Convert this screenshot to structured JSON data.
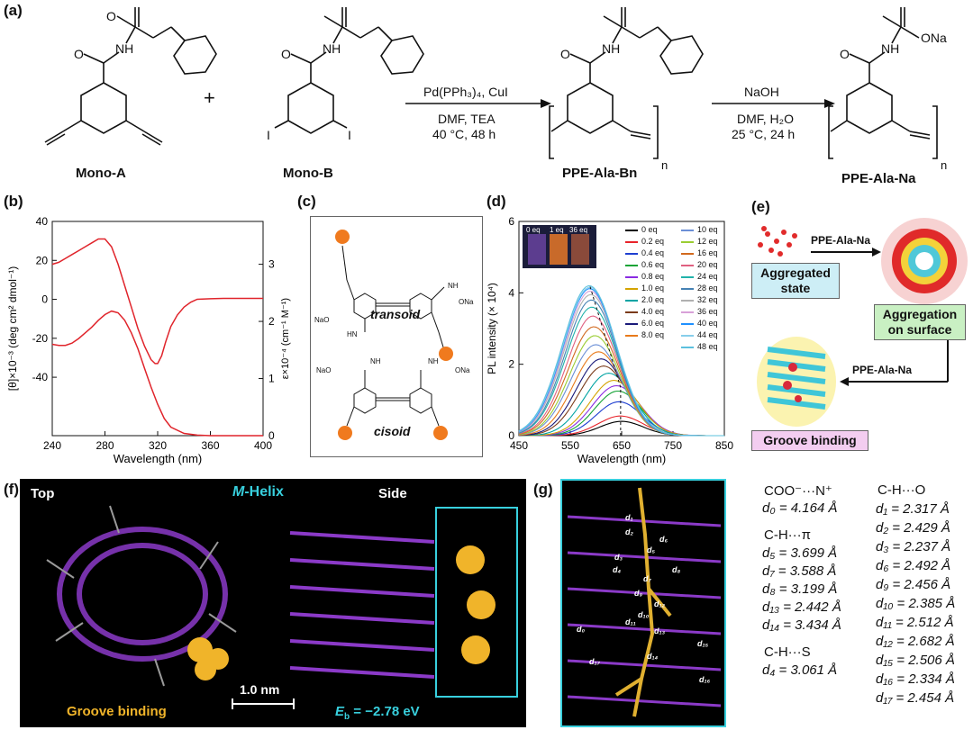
{
  "labels": {
    "a": "(a)",
    "b": "(b)",
    "c": "(c)",
    "d": "(d)",
    "e": "(e)",
    "f": "(f)",
    "g": "(g)"
  },
  "scheme": {
    "mono_a": "Mono-A",
    "mono_b": "Mono-B",
    "plus": "+",
    "step1_top": "Pd(PPh₃)₄, CuI",
    "step1_bot1": "DMF, TEA",
    "step1_bot2": "40 °C, 48 h",
    "product1": "PPE-Ala-Bn",
    "step2_top": "NaOH",
    "step2_bot1": "DMF, H₂O",
    "step2_bot2": "25 °C, 24 h",
    "product2": "PPE-Ala-Na",
    "sub_n": "n",
    "atom_o": "O",
    "atom_nh": "NH",
    "atom_ona": "ONa",
    "atom_i": "I"
  },
  "panel_c": {
    "transoid": "transoid",
    "cisoid": "cisoid",
    "ona": "ONa",
    "nao": "NaO",
    "nh": "NH",
    "hn": "HN"
  },
  "panel_e": {
    "aggregated": "Aggregated state",
    "aggregated_l1": "Aggregated",
    "aggregated_l2": "state",
    "surface_l1": "Aggregation",
    "surface_l2": "on surface",
    "groove": "Groove binding",
    "arrow1": "PPE-Ala-Na",
    "arrow2": "PPE-Ala-Na"
  },
  "panel_f": {
    "top": "Top",
    "helix": "M-Helix",
    "helix_m": "M",
    "helix_rest": "-Helix",
    "side": "Side",
    "scale": "1.0 nm",
    "groove": "Groove binding",
    "eb_sym": "E",
    "eb_sub": "b",
    "eb_val": " = −2.78 eV"
  },
  "panel_g": {
    "col1": [
      {
        "t": "COO⁻···N⁺",
        "head": true
      },
      {
        "t": "d₀ = 4.164 Å"
      },
      {
        "t": "C-H···π",
        "head": true
      },
      {
        "t": "d₅ = 3.699 Å"
      },
      {
        "t": "d₇ = 3.588 Å"
      },
      {
        "t": "d₈ = 3.199 Å"
      },
      {
        "t": "d₁₃ = 2.442 Å"
      },
      {
        "t": "d₁₄ = 3.434 Å"
      },
      {
        "t": "C-H···S",
        "head": true
      },
      {
        "t": "d₄ = 3.061 Å"
      }
    ],
    "col2": [
      {
        "t": "C-H···O",
        "head": true
      },
      {
        "t": "d₁ = 2.317 Å"
      },
      {
        "t": "d₂ = 2.429 Å"
      },
      {
        "t": "d₃ = 2.237 Å"
      },
      {
        "t": "d₆ = 2.492 Å"
      },
      {
        "t": "d₉ = 2.456 Å"
      },
      {
        "t": "d₁₀ = 2.385 Å"
      },
      {
        "t": "d₁₁ = 2.512 Å"
      },
      {
        "t": "d₁₂ = 2.682 Å"
      },
      {
        "t": "d₁₅ = 2.506 Å"
      },
      {
        "t": "d₁₆ = 2.334 Å"
      },
      {
        "t": "d₁₇ = 2.454 Å"
      }
    ],
    "labels": [
      "d₁",
      "d₂",
      "d₃",
      "d₄",
      "d₅",
      "d₆",
      "d₇",
      "d₈",
      "d₉",
      "d₁₀",
      "d₁₁",
      "d₁₂",
      "d₁₃",
      "d₁₄",
      "d₁₅",
      "d₁₆",
      "d₁₇",
      "d₀"
    ]
  },
  "chart_data": [
    {
      "id": "b",
      "type": "line",
      "xlabel": "Wavelength (nm)",
      "ylabel_left": "[θ]×10⁻³ (deg cm² dmol⁻¹)",
      "ylabel_right": "ε×10⁻⁴ (cm⁻¹ M⁻¹)",
      "xlim": [
        240,
        400
      ],
      "xticks": [
        "240",
        "280",
        "320",
        "360",
        "400"
      ],
      "ylim_left": [
        -70,
        40
      ],
      "yticks_left": [
        "40",
        "20",
        "0",
        "-20",
        "-40"
      ],
      "ylim_right": [
        0,
        3.75
      ],
      "yticks_right": [
        "0",
        "1",
        "2",
        "3"
      ],
      "series": [
        {
          "axis": "left",
          "color": "#e0242b",
          "x": [
            240,
            245,
            250,
            255,
            260,
            265,
            270,
            275,
            280,
            285,
            290,
            295,
            300,
            305,
            310,
            315,
            318,
            320,
            323,
            326,
            330,
            335,
            340,
            345,
            350,
            360,
            370,
            380,
            390,
            400
          ],
          "y": [
            18,
            19,
            21,
            23,
            25,
            27,
            29,
            31,
            31,
            27,
            18,
            7,
            -4,
            -15,
            -24,
            -31,
            -33,
            -33,
            -29,
            -22,
            -14,
            -8,
            -4,
            -1.5,
            0,
            0.3,
            0.5,
            0.5,
            0.5,
            0.5
          ]
        },
        {
          "axis": "right",
          "color": "#e0242b",
          "x": [
            240,
            245,
            250,
            255,
            260,
            265,
            270,
            275,
            280,
            285,
            290,
            295,
            300,
            305,
            310,
            315,
            320,
            325,
            330,
            340,
            350,
            360,
            370,
            380,
            390,
            400
          ],
          "y": [
            1.6,
            1.58,
            1.58,
            1.62,
            1.7,
            1.8,
            1.9,
            2.02,
            2.12,
            2.18,
            2.15,
            2.02,
            1.8,
            1.52,
            1.18,
            0.85,
            0.55,
            0.3,
            0.15,
            0.04,
            0.01,
            0.0,
            0.0,
            0.0,
            0.0,
            0.0
          ]
        }
      ]
    },
    {
      "id": "d",
      "type": "line",
      "xlabel": "Wavelength (nm)",
      "ylabel": "PL intensity (× 10⁴)",
      "xlim": [
        450,
        850
      ],
      "xticks": [
        "450",
        "550",
        "650",
        "750",
        "850"
      ],
      "ylim": [
        0,
        6
      ],
      "yticks": [
        "0",
        "2",
        "4",
        "6"
      ],
      "inset_labels": [
        "0 eq",
        "1 eq",
        "36 eq"
      ],
      "series": [
        {
          "name": "0 eq",
          "color": "#000000",
          "peak": 650,
          "amp": 0.4,
          "w": 60
        },
        {
          "name": "0.2 eq",
          "color": "#e8232a",
          "peak": 648,
          "amp": 0.55,
          "w": 62
        },
        {
          "name": "0.4 eq",
          "color": "#1f3fd1",
          "peak": 645,
          "amp": 0.95,
          "w": 63
        },
        {
          "name": "0.6 eq",
          "color": "#15a335",
          "peak": 643,
          "amp": 1.25,
          "w": 64
        },
        {
          "name": "0.8 eq",
          "color": "#8a2be2",
          "peak": 640,
          "amp": 1.4,
          "w": 66
        },
        {
          "name": "1.0 eq",
          "color": "#d4a300",
          "peak": 635,
          "amp": 1.55,
          "w": 66
        },
        {
          "name": "2.0 eq",
          "color": "#00a3a3",
          "peak": 625,
          "amp": 1.75,
          "w": 67
        },
        {
          "name": "4.0 eq",
          "color": "#7a3b1a",
          "peak": 615,
          "amp": 1.95,
          "w": 68
        },
        {
          "name": "6.0 eq",
          "color": "#1a1a7a",
          "peak": 610,
          "amp": 2.15,
          "w": 68
        },
        {
          "name": "8.0 eq",
          "color": "#e87a1a",
          "peak": 605,
          "amp": 2.35,
          "w": 69
        },
        {
          "name": "10 eq",
          "color": "#6b8fd6",
          "peak": 600,
          "amp": 2.55,
          "w": 70
        },
        {
          "name": "12 eq",
          "color": "#9acd32",
          "peak": 598,
          "amp": 2.8,
          "w": 70
        },
        {
          "name": "16 eq",
          "color": "#d2691e",
          "peak": 596,
          "amp": 3.05,
          "w": 71
        },
        {
          "name": "20 eq",
          "color": "#e06080",
          "peak": 594,
          "amp": 3.35,
          "w": 71
        },
        {
          "name": "24 eq",
          "color": "#20b2aa",
          "peak": 592,
          "amp": 3.6,
          "w": 72
        },
        {
          "name": "28 eq",
          "color": "#4682b4",
          "peak": 591,
          "amp": 3.8,
          "w": 72
        },
        {
          "name": "32 eq",
          "color": "#b0b0b0",
          "peak": 590,
          "amp": 3.95,
          "w": 73
        },
        {
          "name": "36 eq",
          "color": "#d8a0d8",
          "peak": 589,
          "amp": 4.05,
          "w": 73
        },
        {
          "name": "40 eq",
          "color": "#1e90ff",
          "peak": 588,
          "amp": 4.12,
          "w": 73
        },
        {
          "name": "44 eq",
          "color": "#87ceeb",
          "peak": 588,
          "amp": 4.16,
          "w": 74
        },
        {
          "name": "48 eq",
          "color": "#5bc0de",
          "peak": 587,
          "amp": 4.2,
          "w": 74
        }
      ]
    }
  ]
}
